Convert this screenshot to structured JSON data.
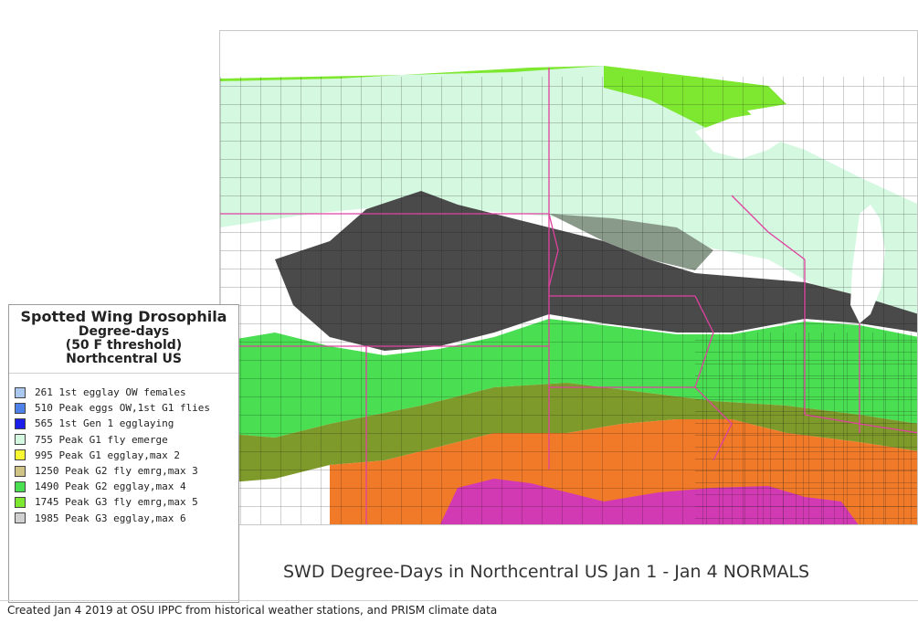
{
  "legend": {
    "title": "Spotted Wing Drosophila",
    "subtitle1": "Degree-days",
    "subtitle2": "(50 F threshold)",
    "subtitle3": "Northcentral US",
    "items": [
      {
        "label": "261 1st egglay OW females",
        "color": "#a8c8f0"
      },
      {
        "label": "510 Peak eggs OW,1st G1 flies",
        "color": "#4e82e8"
      },
      {
        "label": "565 1st Gen 1 egglaying",
        "color": "#1a1ee8"
      },
      {
        "label": "755 Peak G1 fly emerge",
        "color": "#d4f8e0"
      },
      {
        "label": "995 Peak G1 egglay,max 2",
        "color": "#f8f832"
      },
      {
        "label": "1250 Peak G2 fly emrg,max 3",
        "color": "#cfc486"
      },
      {
        "label": "1490 Peak G2 egglay,max 4",
        "color": "#4ade52"
      },
      {
        "label": "1745 Peak G3 fly emrg,max 5",
        "color": "#7ee830"
      },
      {
        "label": "1985 Peak G3 egglay,max 6",
        "color": "#d0d0d0"
      }
    ]
  },
  "map_colors": {
    "pale_green": "#d4f8e0",
    "bright_green": "#7ee830",
    "dark_gray": "#4a4a4a",
    "mid_gray": "#8a9a8a",
    "green": "#4ade52",
    "olive": "#7e9a2a",
    "orange": "#f07a28",
    "magenta": "#d23ab4",
    "lake": "#ffffff",
    "state_border": "#e040a0",
    "county_border": "#111111"
  },
  "caption": "SWD Degree-Days in Northcentral US Jan 1 - Jan 4 NORMALS",
  "credit": "Created Jan 4 2019 at OSU IPPC from  historical weather stations, and PRISM climate data"
}
